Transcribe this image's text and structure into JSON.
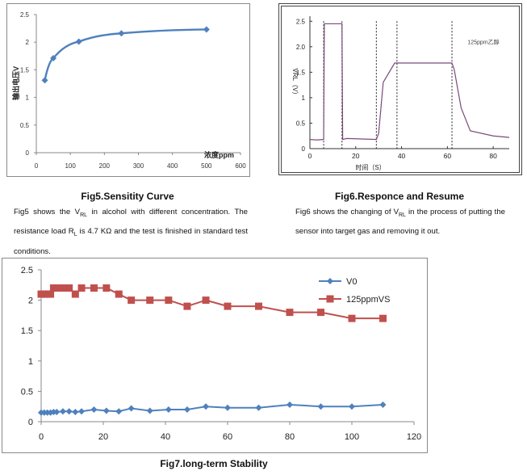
{
  "fig5": {
    "caption": "Fig5.Sensitity Curve",
    "paragraph": [
      "Fig5 shows the V",
      "RL",
      " in alcohol with different concentration. The resistance load R",
      "L",
      " is 4.7 KΩ and the test is finished in standard test conditions."
    ],
    "chart_data": {
      "type": "line",
      "xlabel": "浓度ppm",
      "ylabel": "输出电压V",
      "xlim": [
        0,
        600
      ],
      "ylim": [
        0,
        2.5
      ],
      "x_ticks": [
        "0",
        "100",
        "200",
        "300",
        "400",
        "500",
        "600"
      ],
      "y_ticks": [
        "0",
        "0.5",
        "1",
        "1.5",
        "2",
        "2.5"
      ],
      "x": [
        25,
        50,
        125,
        250,
        500
      ],
      "values": [
        1.31,
        1.71,
        2.01,
        2.16,
        2.23
      ],
      "color": "#4f81bd"
    }
  },
  "fig6": {
    "caption": "Fig6.Responce and Resume",
    "paragraph": [
      "Fig6 shows the changing of V",
      "RL",
      " in the process of putting the sensor into target gas and removing it out."
    ],
    "chart_data": {
      "type": "line",
      "xlabel": "时间（S）",
      "ylabel": "VRL（V）",
      "annotation": "125ppm乙醇",
      "xlim": [
        0,
        87
      ],
      "ylim": [
        0,
        2.6
      ],
      "x_ticks": [
        "0",
        "20",
        "40",
        "60",
        "80"
      ],
      "y_ticks": [
        "0",
        "0.5",
        "1",
        "1.5",
        "2.0",
        "2.5"
      ],
      "x": [
        0,
        3,
        6,
        6.3,
        14,
        14.3,
        16,
        29,
        30,
        32,
        37,
        62,
        63,
        66,
        70,
        80,
        87
      ],
      "values": [
        0.18,
        0.17,
        0.18,
        2.45,
        2.45,
        0.18,
        0.2,
        0.18,
        0.3,
        1.3,
        1.68,
        1.68,
        1.55,
        0.8,
        0.35,
        0.25,
        0.22
      ],
      "dashed_x": [
        6,
        14,
        29,
        38,
        62
      ],
      "color": "#7a4a7a"
    }
  },
  "fig7": {
    "caption": "Fig7.long-term Stability",
    "chart_data": {
      "type": "line",
      "xlim": [
        0,
        120
      ],
      "ylim": [
        0,
        2.5
      ],
      "x_ticks": [
        "0",
        "20",
        "40",
        "60",
        "80",
        "100",
        "120"
      ],
      "y_ticks": [
        "0",
        "0.5",
        "1",
        "1.5",
        "2",
        "2.5"
      ],
      "x": [
        0,
        1,
        2,
        3,
        4,
        5,
        7,
        9,
        11,
        13,
        17,
        21,
        25,
        29,
        35,
        41,
        47,
        53,
        60,
        70,
        80,
        90,
        100,
        110
      ],
      "series": [
        {
          "name": "V0",
          "color": "#4f81bd",
          "marker": "diamond",
          "values": [
            0.15,
            0.15,
            0.15,
            0.15,
            0.16,
            0.16,
            0.17,
            0.17,
            0.16,
            0.17,
            0.2,
            0.18,
            0.17,
            0.22,
            0.18,
            0.2,
            0.2,
            0.25,
            0.23,
            0.23,
            0.28,
            0.25,
            0.25,
            0.28
          ]
        },
        {
          "name": "125ppmVS",
          "color": "#c0504d",
          "marker": "square",
          "values": [
            2.1,
            2.1,
            2.1,
            2.1,
            2.2,
            2.2,
            2.2,
            2.2,
            2.1,
            2.2,
            2.2,
            2.2,
            2.1,
            2.0,
            2.0,
            2.0,
            1.9,
            2.0,
            1.9,
            1.9,
            1.8,
            1.8,
            1.7,
            1.7
          ]
        }
      ]
    }
  }
}
